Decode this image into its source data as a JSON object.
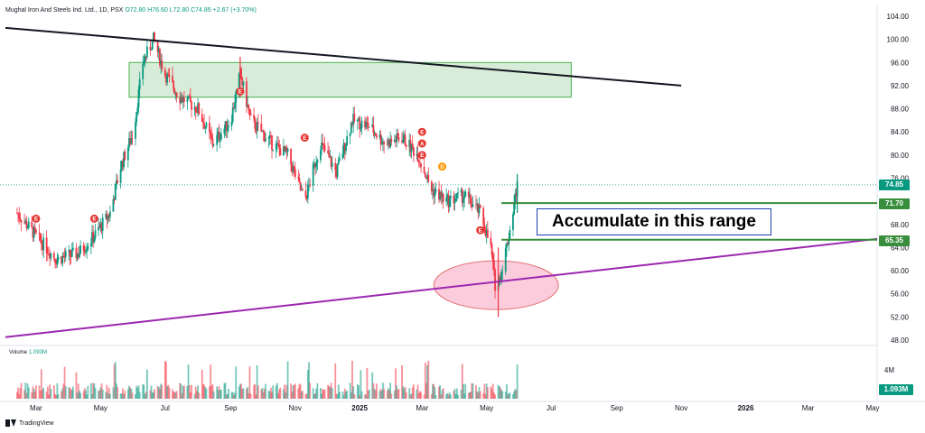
{
  "header": {
    "symbol": "Mughal Iron And Steels Ind. Ltd., 1D, PSX",
    "ohlc": "O72.80  H76.60  L72.80  C74.85  +2.67 (+3.70%)"
  },
  "volume": {
    "label": "Volume",
    "value": "1.093M",
    "tag": "1.093M",
    "tick": "4M"
  },
  "brand": "TradingView",
  "annotation": {
    "text": "Accumulate in this range"
  },
  "price_tags": {
    "current": "74.85",
    "upper": "71.70",
    "lower": "65.35"
  },
  "colors": {
    "up": "#089981",
    "down": "#f23645",
    "support_line": "#9c27b0",
    "resistance_line": "#131722",
    "range_lines": "#388e3c",
    "zone_fill": "#c8e6c9",
    "ellipse_fill": "#f8bbd0",
    "current": "#089981"
  },
  "chart_data": {
    "type": "candlestick",
    "title": "Mughal Iron And Steels Ind. Ltd., 1D, PSX",
    "ylim": [
      48,
      104
    ],
    "y_ticks": [
      "104.00",
      "100.00",
      "96.00",
      "92.00",
      "88.00",
      "84.00",
      "80.00",
      "76.00",
      "68.00",
      "64.00",
      "60.00",
      "56.00",
      "52.00",
      "48.00"
    ],
    "x_ticks": [
      "Mar",
      "May",
      "Jul",
      "Sep",
      "Nov",
      "2025",
      "Mar",
      "May",
      "Jul",
      "Sep",
      "Nov",
      "2026",
      "Mar",
      "May"
    ],
    "close_path": [
      [
        "2024-02-12",
        70
      ],
      [
        "2024-03-01",
        66
      ],
      [
        "2024-03-20",
        62
      ],
      [
        "2024-04-10",
        63
      ],
      [
        "2024-04-25",
        66
      ],
      [
        "2024-05-10",
        70
      ],
      [
        "2024-05-20",
        78
      ],
      [
        "2024-06-01",
        84
      ],
      [
        "2024-06-10",
        96
      ],
      [
        "2024-06-20",
        100
      ],
      [
        "2024-07-01",
        94
      ],
      [
        "2024-07-15",
        90
      ],
      [
        "2024-08-01",
        88
      ],
      [
        "2024-08-15",
        82
      ],
      [
        "2024-09-01",
        86
      ],
      [
        "2024-09-10",
        94
      ],
      [
        "2024-09-20",
        86
      ],
      [
        "2024-10-10",
        82
      ],
      [
        "2024-10-25",
        80
      ],
      [
        "2024-11-10",
        72
      ],
      [
        "2024-11-25",
        82
      ],
      [
        "2024-12-10",
        77
      ],
      [
        "2024-12-25",
        86
      ],
      [
        "2025-01-10",
        85
      ],
      [
        "2025-01-25",
        82
      ],
      [
        "2025-02-10",
        83
      ],
      [
        "2025-02-25",
        80
      ],
      [
        "2025-03-10",
        74
      ],
      [
        "2025-03-25",
        72
      ],
      [
        "2025-04-10",
        73
      ],
      [
        "2025-04-25",
        70
      ],
      [
        "2025-05-05",
        64
      ],
      [
        "2025-05-10",
        56
      ],
      [
        "2025-05-15",
        60
      ],
      [
        "2025-05-22",
        66
      ],
      [
        "2025-05-30",
        74.85
      ]
    ],
    "range_box": [
      90,
      96
    ],
    "accumulation_range": [
      65.35,
      71.7
    ],
    "event_markers": [
      "E",
      "E",
      "E",
      "E",
      "E",
      "A",
      "E",
      "D",
      "E"
    ],
    "grid": false
  }
}
